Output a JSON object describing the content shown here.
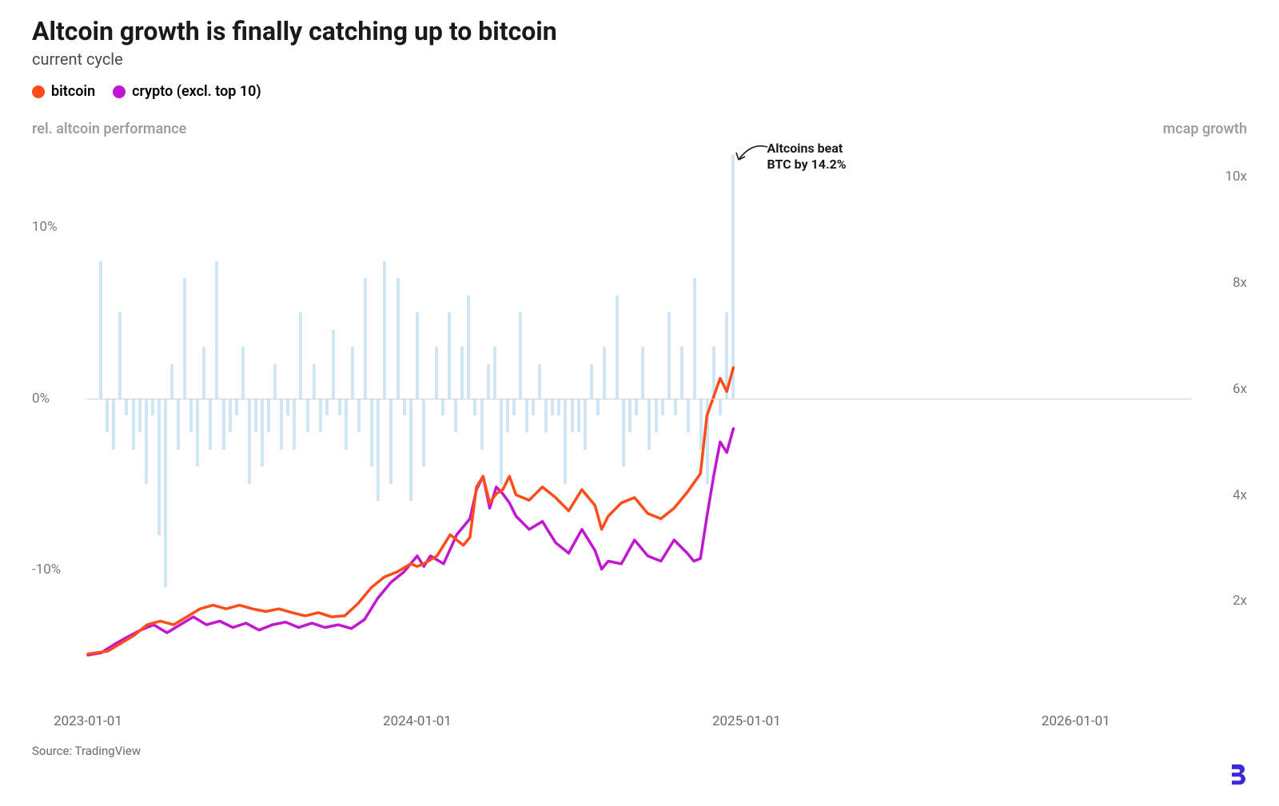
{
  "title": "Altcoin growth is finally catching up to bitcoin",
  "subtitle": "current cycle",
  "legend": {
    "bitcoin": {
      "label": "bitcoin",
      "color": "#ff4d1a"
    },
    "crypto": {
      "label": "crypto (excl. top 10)",
      "color": "#c217d1"
    }
  },
  "axis": {
    "left_label": "rel. altcoin performance",
    "left_label_color": "#9aa0a6",
    "right_label": "mcap growth",
    "right_label_color": "#9aa0a6",
    "left_ticks": [
      {
        "v": 10,
        "label": "10%"
      },
      {
        "v": 0,
        "label": "0%"
      },
      {
        "v": -10,
        "label": "-10%"
      }
    ],
    "left_min": -18,
    "left_max": 16,
    "right_ticks": [
      {
        "v": 10,
        "label": "10x"
      },
      {
        "v": 8,
        "label": "8x"
      },
      {
        "v": 6,
        "label": "6x"
      },
      {
        "v": 4,
        "label": "4x"
      },
      {
        "v": 2,
        "label": "2x"
      }
    ],
    "right_min": 0,
    "right_max": 11,
    "x_ticks": [
      "2023-01-01",
      "2024-01-01",
      "2025-01-01",
      "2026-01-01"
    ],
    "x_min": 0,
    "x_max": 3.35
  },
  "bar_series": {
    "color": "#cfe6f5",
    "values": [
      0,
      0,
      8,
      -2,
      -3,
      5,
      -1,
      -3,
      -2,
      -5,
      -1,
      -8,
      -11,
      2,
      -3,
      7,
      -2,
      -4,
      3,
      -3,
      8,
      -3,
      -2,
      -1,
      3,
      -5,
      -2,
      -4,
      -2,
      2,
      -3,
      -1,
      -3,
      5,
      -2,
      2,
      -2,
      -1,
      4,
      -1,
      -3,
      3,
      -2,
      7,
      -4,
      -6,
      8,
      -5,
      7,
      -1,
      -6,
      5,
      -4,
      0,
      3,
      -1,
      5,
      -2,
      3,
      6,
      -1,
      -3,
      2,
      3,
      -5,
      -2,
      -1,
      5,
      -2,
      -1,
      2,
      -2,
      -1,
      -1,
      -5,
      -2,
      -2,
      -3,
      2,
      -1,
      3,
      0,
      6,
      -4,
      -2,
      -1,
      3,
      -3,
      -2,
      -1,
      5,
      -1,
      3,
      -2,
      7,
      -3,
      -5,
      3,
      -1,
      5,
      14.2
    ]
  },
  "lines": {
    "bitcoin": {
      "color": "#ff4d1a",
      "width": 3.5,
      "points": [
        [
          0.0,
          1.0
        ],
        [
          0.02,
          1.02
        ],
        [
          0.06,
          1.05
        ],
        [
          0.1,
          1.2
        ],
        [
          0.14,
          1.35
        ],
        [
          0.18,
          1.55
        ],
        [
          0.22,
          1.62
        ],
        [
          0.26,
          1.55
        ],
        [
          0.3,
          1.7
        ],
        [
          0.34,
          1.85
        ],
        [
          0.38,
          1.92
        ],
        [
          0.42,
          1.85
        ],
        [
          0.46,
          1.92
        ],
        [
          0.5,
          1.85
        ],
        [
          0.54,
          1.8
        ],
        [
          0.58,
          1.85
        ],
        [
          0.62,
          1.78
        ],
        [
          0.66,
          1.72
        ],
        [
          0.7,
          1.78
        ],
        [
          0.74,
          1.7
        ],
        [
          0.78,
          1.72
        ],
        [
          0.82,
          1.95
        ],
        [
          0.86,
          2.25
        ],
        [
          0.9,
          2.45
        ],
        [
          0.94,
          2.55
        ],
        [
          0.98,
          2.7
        ],
        [
          1.0,
          2.65
        ],
        [
          1.02,
          2.7
        ],
        [
          1.06,
          2.85
        ],
        [
          1.1,
          3.25
        ],
        [
          1.14,
          3.05
        ],
        [
          1.16,
          3.2
        ],
        [
          1.18,
          4.15
        ],
        [
          1.2,
          4.35
        ],
        [
          1.22,
          3.85
        ],
        [
          1.24,
          4.02
        ],
        [
          1.26,
          4.1
        ],
        [
          1.28,
          4.35
        ],
        [
          1.3,
          4.0
        ],
        [
          1.34,
          3.9
        ],
        [
          1.38,
          4.15
        ],
        [
          1.42,
          3.95
        ],
        [
          1.46,
          3.7
        ],
        [
          1.5,
          4.1
        ],
        [
          1.54,
          3.8
        ],
        [
          1.56,
          3.35
        ],
        [
          1.58,
          3.6
        ],
        [
          1.62,
          3.85
        ],
        [
          1.66,
          3.95
        ],
        [
          1.7,
          3.65
        ],
        [
          1.74,
          3.55
        ],
        [
          1.78,
          3.75
        ],
        [
          1.82,
          4.05
        ],
        [
          1.86,
          4.4
        ],
        [
          1.88,
          5.5
        ],
        [
          1.9,
          5.85
        ],
        [
          1.92,
          6.2
        ],
        [
          1.94,
          5.95
        ],
        [
          1.96,
          6.4
        ]
      ]
    },
    "crypto": {
      "color": "#c217d1",
      "width": 3.5,
      "points": [
        [
          0.0,
          0.98
        ],
        [
          0.04,
          1.02
        ],
        [
          0.08,
          1.18
        ],
        [
          0.12,
          1.32
        ],
        [
          0.16,
          1.45
        ],
        [
          0.2,
          1.55
        ],
        [
          0.24,
          1.4
        ],
        [
          0.28,
          1.55
        ],
        [
          0.32,
          1.7
        ],
        [
          0.36,
          1.55
        ],
        [
          0.4,
          1.62
        ],
        [
          0.44,
          1.5
        ],
        [
          0.48,
          1.58
        ],
        [
          0.52,
          1.45
        ],
        [
          0.56,
          1.55
        ],
        [
          0.6,
          1.6
        ],
        [
          0.64,
          1.5
        ],
        [
          0.68,
          1.58
        ],
        [
          0.72,
          1.5
        ],
        [
          0.76,
          1.55
        ],
        [
          0.8,
          1.48
        ],
        [
          0.84,
          1.65
        ],
        [
          0.88,
          2.05
        ],
        [
          0.92,
          2.35
        ],
        [
          0.96,
          2.55
        ],
        [
          1.0,
          2.85
        ],
        [
          1.02,
          2.65
        ],
        [
          1.04,
          2.85
        ],
        [
          1.08,
          2.7
        ],
        [
          1.12,
          3.25
        ],
        [
          1.16,
          3.55
        ],
        [
          1.18,
          4.1
        ],
        [
          1.2,
          4.35
        ],
        [
          1.22,
          3.75
        ],
        [
          1.24,
          4.15
        ],
        [
          1.26,
          4.02
        ],
        [
          1.28,
          3.85
        ],
        [
          1.3,
          3.6
        ],
        [
          1.34,
          3.35
        ],
        [
          1.38,
          3.5
        ],
        [
          1.42,
          3.1
        ],
        [
          1.46,
          2.9
        ],
        [
          1.5,
          3.35
        ],
        [
          1.54,
          2.95
        ],
        [
          1.56,
          2.6
        ],
        [
          1.58,
          2.75
        ],
        [
          1.62,
          2.7
        ],
        [
          1.66,
          3.15
        ],
        [
          1.7,
          2.85
        ],
        [
          1.74,
          2.75
        ],
        [
          1.78,
          3.15
        ],
        [
          1.82,
          2.9
        ],
        [
          1.84,
          2.75
        ],
        [
          1.86,
          2.8
        ],
        [
          1.88,
          3.6
        ],
        [
          1.9,
          4.35
        ],
        [
          1.92,
          5.0
        ],
        [
          1.94,
          4.8
        ],
        [
          1.96,
          5.25
        ]
      ]
    }
  },
  "annotation": {
    "text_line1": "Altcoins beat",
    "text_line2": "BTC by 14.2%",
    "x": 1.97,
    "arrow_color": "#1a1a1a"
  },
  "source": "Source: TradingView",
  "logo_color": "#3a2bd6",
  "background_color": "#ffffff"
}
